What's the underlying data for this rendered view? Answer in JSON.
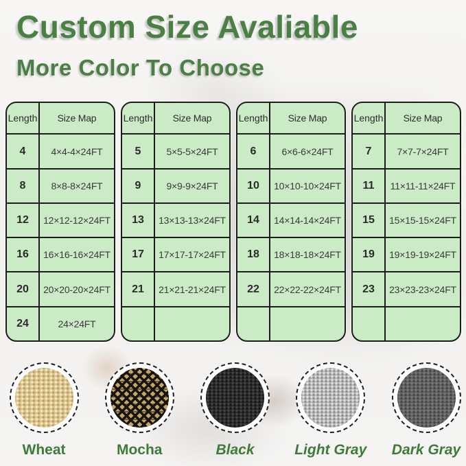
{
  "page": {
    "title": "Custom Size Avaliable",
    "subtitle": "More Color To Choose",
    "title_color": "#4a8044",
    "table_background_color": "#cbeac6",
    "table_border_color": "#1c1c1c",
    "swatch_label_color": "#3e7a38"
  },
  "size_tables": {
    "column_headers": [
      "Length",
      "Size Map"
    ],
    "tables": [
      {
        "rows": [
          {
            "length": "4",
            "size_map": "4×4-4×24FT"
          },
          {
            "length": "8",
            "size_map": "8×8-8×24FT"
          },
          {
            "length": "12",
            "size_map": "12×12-12×24FT"
          },
          {
            "length": "16",
            "size_map": "16×16-16×24FT"
          },
          {
            "length": "20",
            "size_map": "20×20-20×24FT"
          },
          {
            "length": "24",
            "size_map": "24×24FT"
          }
        ]
      },
      {
        "rows": [
          {
            "length": "5",
            "size_map": "5×5-5×24FT"
          },
          {
            "length": "9",
            "size_map": "9×9-9×24FT"
          },
          {
            "length": "13",
            "size_map": "13×13-13×24FT"
          },
          {
            "length": "17",
            "size_map": "17×17-17×24FT"
          },
          {
            "length": "21",
            "size_map": "21×21-21×24FT"
          },
          {
            "length": "",
            "size_map": ""
          }
        ]
      },
      {
        "rows": [
          {
            "length": "6",
            "size_map": "6×6-6×24FT"
          },
          {
            "length": "10",
            "size_map": "10×10-10×24FT"
          },
          {
            "length": "14",
            "size_map": "14×14-14×24FT"
          },
          {
            "length": "18",
            "size_map": "18×18-18×24FT"
          },
          {
            "length": "22",
            "size_map": "22×22-22×24FT"
          },
          {
            "length": "",
            "size_map": ""
          }
        ]
      },
      {
        "rows": [
          {
            "length": "7",
            "size_map": "7×7-7×24FT"
          },
          {
            "length": "11",
            "size_map": "11×11-11×24FT"
          },
          {
            "length": "15",
            "size_map": "15×15-15×24FT"
          },
          {
            "length": "19",
            "size_map": "19×19-19×24FT"
          },
          {
            "length": "23",
            "size_map": "23×23-23×24FT"
          },
          {
            "length": "",
            "size_map": ""
          }
        ]
      }
    ]
  },
  "color_swatches": [
    {
      "label": "Wheat",
      "color": "#dcc58d",
      "italic": false
    },
    {
      "label": "Mocha",
      "color": "#c5a468",
      "italic": false
    },
    {
      "label": "Black",
      "color": "#2c2c2c",
      "italic": true
    },
    {
      "label": "Light Gray",
      "color": "#b9b9b9",
      "italic": true
    },
    {
      "label": "Dark Gray",
      "color": "#626262",
      "italic": true
    }
  ]
}
